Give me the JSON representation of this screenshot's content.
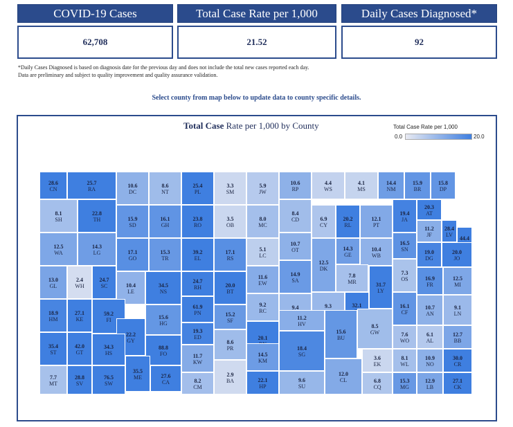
{
  "kpis": [
    {
      "label": "COVID-19 Cases",
      "value": "62,708"
    },
    {
      "label": "Total Case Rate per 1,000",
      "value": "21.52"
    },
    {
      "label": "Daily Cases Diagnosed*",
      "value": "92"
    }
  ],
  "notes": {
    "line1": "*Daily Cases Diagnosed is based on diagnosis date for the previous day and does not include the total new cases reported each day.",
    "line2": "Data are preliminary and subject to quality improvement and quality assurance validation."
  },
  "select_hint": "Select county from map below to update data to county specific details.",
  "map": {
    "title_bold": "Total Case",
    "title_rest": " Rate per 1,000 by County",
    "legend_title": "Total Case Rate per 1,000",
    "legend_min": "0.0",
    "legend_max": "20.0",
    "colors": {
      "low": "#e8eaf2",
      "high": "#3f7fe0"
    },
    "counties": [
      {
        "code": "CN",
        "value": "28.6",
        "v": 28.6
      },
      {
        "code": "RA",
        "value": "25.7",
        "v": 25.7
      },
      {
        "code": "DC",
        "value": "10.6",
        "v": 10.6
      },
      {
        "code": "NT",
        "value": "8.6",
        "v": 8.6
      },
      {
        "code": "PL",
        "value": "25.4",
        "v": 25.4
      },
      {
        "code": "SM",
        "value": "3.3",
        "v": 3.3
      },
      {
        "code": "JW",
        "value": "5.9",
        "v": 5.9
      },
      {
        "code": "RP",
        "value": "10.6",
        "v": 10.6
      },
      {
        "code": "WS",
        "value": "4.4",
        "v": 4.4
      },
      {
        "code": "MS",
        "value": "4.1",
        "v": 4.1
      },
      {
        "code": "NM",
        "value": "14.4",
        "v": 14.4
      },
      {
        "code": "BR",
        "value": "15.9",
        "v": 15.9
      },
      {
        "code": "DP",
        "value": "15.8",
        "v": 15.8
      },
      {
        "code": "SH",
        "value": "8.1",
        "v": 8.1
      },
      {
        "code": "TH",
        "value": "22.8",
        "v": 22.8
      },
      {
        "code": "SD",
        "value": "15.9",
        "v": 15.9
      },
      {
        "code": "GH",
        "value": "16.1",
        "v": 16.1
      },
      {
        "code": "RO",
        "value": "23.8",
        "v": 23.8
      },
      {
        "code": "OB",
        "value": "3.5",
        "v": 3.5
      },
      {
        "code": "MC",
        "value": "8.0",
        "v": 8.0
      },
      {
        "code": "CD",
        "value": "8.4",
        "v": 8.4
      },
      {
        "code": "CY",
        "value": "6.9",
        "v": 6.9
      },
      {
        "code": "RL",
        "value": "20.2",
        "v": 20.2
      },
      {
        "code": "PT",
        "value": "12.1",
        "v": 12.1
      },
      {
        "code": "JA",
        "value": "19.4",
        "v": 19.4
      },
      {
        "code": "AT",
        "value": "20.3",
        "v": 20.3
      },
      {
        "code": "JF",
        "value": "11.2",
        "v": 11.2
      },
      {
        "code": "LV",
        "value": "28.4",
        "v": 28.4
      },
      {
        "code": "WY",
        "value": "44.4",
        "v": 44.4
      },
      {
        "code": "WA",
        "value": "12.5",
        "v": 12.5
      },
      {
        "code": "LG",
        "value": "14.3",
        "v": 14.3
      },
      {
        "code": "GO",
        "value": "17.1",
        "v": 17.1
      },
      {
        "code": "TR",
        "value": "15.3",
        "v": 15.3
      },
      {
        "code": "EL",
        "value": "39.2",
        "v": 39.2
      },
      {
        "code": "RS",
        "value": "17.1",
        "v": 17.1
      },
      {
        "code": "LC",
        "value": "5.1",
        "v": 5.1
      },
      {
        "code": "OT",
        "value": "10.7",
        "v": 10.7
      },
      {
        "code": "GE",
        "value": "14.3",
        "v": 14.3
      },
      {
        "code": "WB",
        "value": "10.4",
        "v": 10.4
      },
      {
        "code": "SN",
        "value": "16.5",
        "v": 16.5
      },
      {
        "code": "DG",
        "value": "19.0",
        "v": 19.0
      },
      {
        "code": "JO",
        "value": "20.0",
        "v": 20.0
      },
      {
        "code": "EW",
        "value": "11.6",
        "v": 11.6
      },
      {
        "code": "SA",
        "value": "14.9",
        "v": 14.9
      },
      {
        "code": "DK",
        "value": "12.5",
        "v": 12.5
      },
      {
        "code": "MR",
        "value": "7.8",
        "v": 7.8
      },
      {
        "code": "OS",
        "value": "7.3",
        "v": 7.3
      },
      {
        "code": "GL",
        "value": "13.0",
        "v": 13.0
      },
      {
        "code": "WH",
        "value": "2.4",
        "v": 2.4
      },
      {
        "code": "SC",
        "value": "24.7",
        "v": 24.7
      },
      {
        "code": "LE",
        "value": "10.4",
        "v": 10.4
      },
      {
        "code": "NS",
        "value": "34.5",
        "v": 34.5
      },
      {
        "code": "RH",
        "value": "24.7",
        "v": 24.7
      },
      {
        "code": "BT",
        "value": "20.0",
        "v": 20.0
      },
      {
        "code": "RC",
        "value": "9.2",
        "v": 9.2
      },
      {
        "code": "MP",
        "value": "9.4",
        "v": 9.4
      },
      {
        "code": "MN",
        "value": "9.3",
        "v": 9.3
      },
      {
        "code": "CS",
        "value": "32.1",
        "v": 32.1
      },
      {
        "code": "LY",
        "value": "31.7",
        "v": 31.7
      },
      {
        "code": "FR",
        "value": "16.9",
        "v": 16.9
      },
      {
        "code": "MI",
        "value": "12.5",
        "v": 12.5
      },
      {
        "code": "HM",
        "value": "18.9",
        "v": 18.9
      },
      {
        "code": "KE",
        "value": "27.1",
        "v": 27.1
      },
      {
        "code": "FI",
        "value": "59.2",
        "v": 59.2
      },
      {
        "code": "HG",
        "value": "15.6",
        "v": 15.6
      },
      {
        "code": "PN",
        "value": "61.9",
        "v": 61.9
      },
      {
        "code": "SF",
        "value": "15.2",
        "v": 15.2
      },
      {
        "code": "HV",
        "value": "11.2",
        "v": 11.2
      },
      {
        "code": "CF",
        "value": "16.1",
        "v": 16.1
      },
      {
        "code": "AN",
        "value": "10.7",
        "v": 10.7
      },
      {
        "code": "LN",
        "value": "9.1",
        "v": 9.1
      },
      {
        "code": "GY",
        "value": "22.2",
        "v": 22.2
      },
      {
        "code": "ED",
        "value": "19.3",
        "v": 19.3
      },
      {
        "code": "RN",
        "value": "20.1",
        "v": 20.1
      },
      {
        "code": "BU",
        "value": "15.6",
        "v": 15.6
      },
      {
        "code": "GW",
        "value": "8.5",
        "v": 8.5
      },
      {
        "code": "WO",
        "value": "7.6",
        "v": 7.6
      },
      {
        "code": "AL",
        "value": "6.1",
        "v": 6.1
      },
      {
        "code": "BB",
        "value": "12.7",
        "v": 12.7
      },
      {
        "code": "ST",
        "value": "35.4",
        "v": 35.4
      },
      {
        "code": "GT",
        "value": "42.0",
        "v": 42.0
      },
      {
        "code": "HS",
        "value": "34.3",
        "v": 34.3
      },
      {
        "code": "FO",
        "value": "88.8",
        "v": 88.8
      },
      {
        "code": "KW",
        "value": "11.7",
        "v": 11.7
      },
      {
        "code": "PR",
        "value": "8.6",
        "v": 8.6
      },
      {
        "code": "KM",
        "value": "14.5",
        "v": 14.5
      },
      {
        "code": "SG",
        "value": "18.4",
        "v": 18.4
      },
      {
        "code": "WL",
        "value": "8.1",
        "v": 8.1
      },
      {
        "code": "NO",
        "value": "10.9",
        "v": 10.9
      },
      {
        "code": "CR",
        "value": "30.0",
        "v": 30.0
      },
      {
        "code": "MT",
        "value": "7.7",
        "v": 7.7
      },
      {
        "code": "SV",
        "value": "28.8",
        "v": 28.8
      },
      {
        "code": "SW",
        "value": "76.5",
        "v": 76.5
      },
      {
        "code": "ME",
        "value": "35.5",
        "v": 35.5
      },
      {
        "code": "CA",
        "value": "27.6",
        "v": 27.6
      },
      {
        "code": "CM",
        "value": "8.2",
        "v": 8.2
      },
      {
        "code": "BA",
        "value": "2.9",
        "v": 2.9
      },
      {
        "code": "HP",
        "value": "22.1",
        "v": 22.1
      },
      {
        "code": "SU",
        "value": "9.6",
        "v": 9.6
      },
      {
        "code": "CL",
        "value": "12.0",
        "v": 12.0
      },
      {
        "code": "EK",
        "value": "3.6",
        "v": 3.6
      },
      {
        "code": "CQ",
        "value": "6.8",
        "v": 6.8
      },
      {
        "code": "MG",
        "value": "15.3",
        "v": 15.3
      },
      {
        "code": "LB",
        "value": "12.9",
        "v": 12.9
      },
      {
        "code": "CK",
        "value": "27.1",
        "v": 27.1
      }
    ]
  }
}
